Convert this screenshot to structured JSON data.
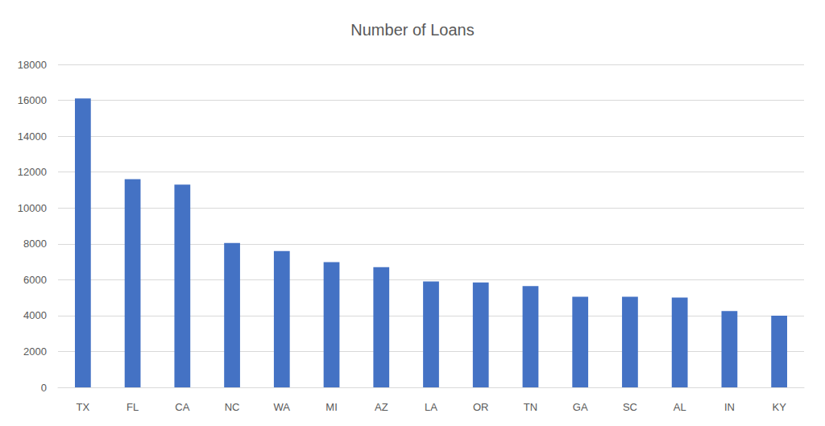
{
  "chart_data": {
    "type": "bar",
    "title": "Number of Loans",
    "categories": [
      "TX",
      "FL",
      "CA",
      "NC",
      "WA",
      "MI",
      "AZ",
      "LA",
      "OR",
      "TN",
      "GA",
      "SC",
      "AL",
      "IN",
      "KY"
    ],
    "values": [
      16100,
      11600,
      11300,
      8050,
      7600,
      6980,
      6700,
      5900,
      5850,
      5650,
      5050,
      5050,
      5000,
      4250,
      4000
    ],
    "color": "#4472c4",
    "ylim": [
      0,
      18000
    ],
    "yticks": [
      0,
      2000,
      4000,
      6000,
      8000,
      10000,
      12000,
      14000,
      16000,
      18000
    ],
    "grid": true
  }
}
